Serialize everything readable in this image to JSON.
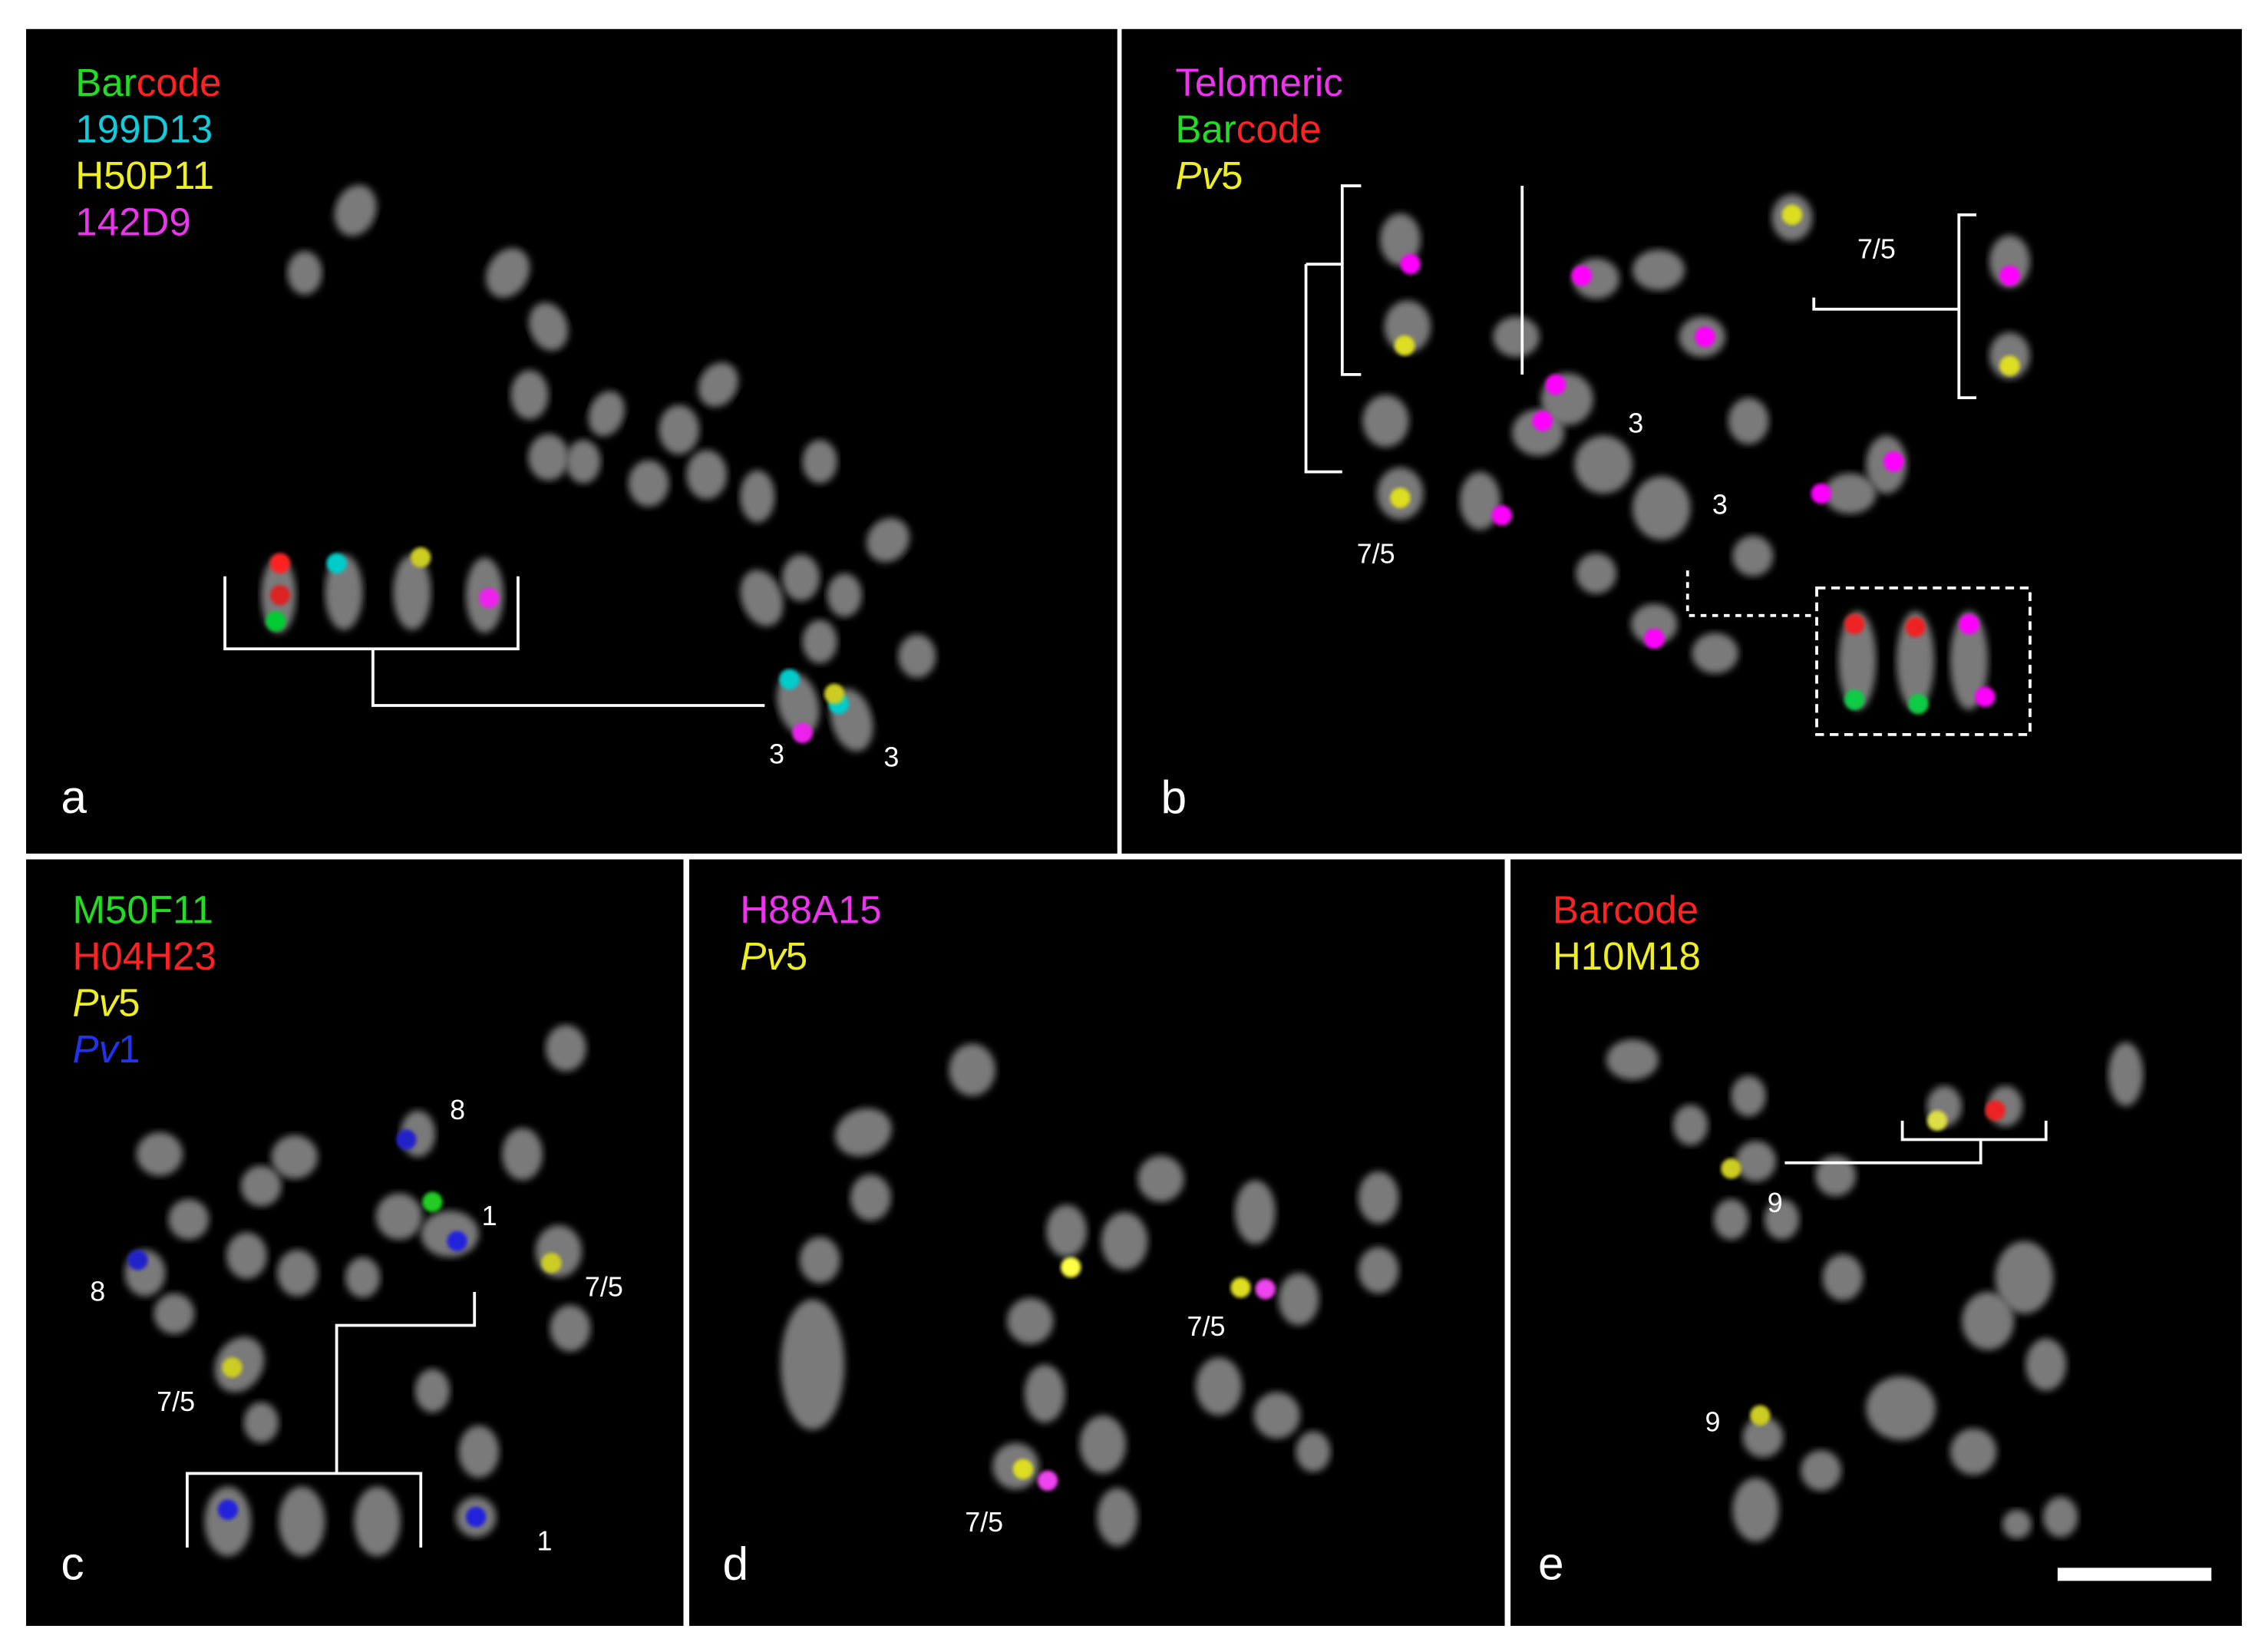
{
  "panels": [
    {
      "letter": "a",
      "legend": [
        [
          "Bar",
          "code"
        ],
        [
          "199D13"
        ],
        [
          "H50P11"
        ],
        [
          "142D9"
        ]
      ],
      "labels": [
        "3",
        "3"
      ]
    },
    {
      "letter": "b",
      "legend": [
        [
          "Telomeric"
        ],
        [
          "Bar",
          "code"
        ],
        [
          "Pv",
          "5"
        ]
      ],
      "labels": [
        "7/5",
        "3",
        "3",
        "7/5"
      ]
    },
    {
      "letter": "c",
      "legend": [
        [
          "M50F11"
        ],
        [
          "H04H23"
        ],
        [
          "Pv",
          "5"
        ],
        [
          "Pv",
          "1"
        ]
      ],
      "labels": [
        "8",
        "1",
        "8",
        "7/5",
        "7/5",
        "1"
      ]
    },
    {
      "letter": "d",
      "legend": [
        [
          "H88A15"
        ],
        [
          "Pv",
          "5"
        ]
      ],
      "labels": [
        "7/5",
        "7/5"
      ]
    },
    {
      "letter": "e",
      "legend": [
        [
          "Barcode"
        ],
        [
          "H10M18"
        ]
      ],
      "labels": [
        "9",
        "9"
      ]
    }
  ]
}
